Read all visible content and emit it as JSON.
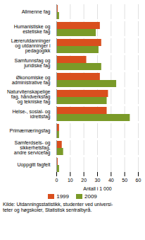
{
  "chart_data": {
    "type": "bar",
    "orientation": "horizontal",
    "categories": [
      "Allmenne fag",
      "Humanistiske og\nestetiske fag",
      "Lærerutdanninger\nog utdanninger i\npedagogikk",
      "Samfunnsfag og\njuridiske fag",
      "Økonomiske og\nadministrative fag",
      "Naturvitenskapelige\nfag, håndverksfag\nog tekniske fag",
      "Helse-, sosial- og\nidrettsfag",
      "Primærnæringsfag",
      "Samferdsels- og\nsikkerhetsfag,\nandre servicefag",
      "Uoppgitt fagfelt"
    ],
    "series": [
      {
        "name": "1999",
        "color": "#d94f1e",
        "values": [
          1,
          32,
          33,
          22,
          32,
          38,
          37,
          2,
          4,
          1
        ]
      },
      {
        "name": "2009",
        "color": "#7a9a28",
        "values": [
          2,
          29,
          31,
          33,
          44,
          37,
          54,
          2,
          5,
          2
        ]
      }
    ],
    "xlabel": "Antall i 1 000",
    "xlim": [
      0,
      60
    ],
    "xticks": [
      0,
      10,
      20,
      30,
      40,
      50,
      60
    ],
    "grid": true,
    "legend": "bottom",
    "annotations": [
      "Kilde: Utdanningsstatistikk, studenter ved universi-\nteter og høgskoler, Statistisk sentralbyrå."
    ]
  }
}
